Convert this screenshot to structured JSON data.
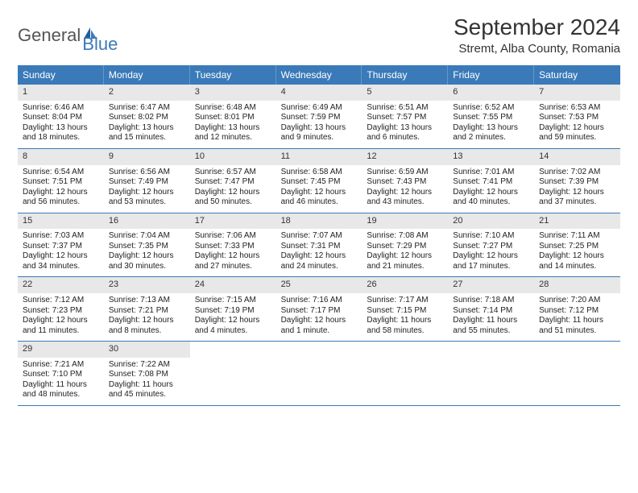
{
  "logo": {
    "text1": "General",
    "text2": "Blue"
  },
  "title": "September 2024",
  "location": "Stremt, Alba County, Romania",
  "colors": {
    "header_bg": "#3a7ab8",
    "header_text": "#ffffff",
    "daynum_bg": "#e8e8e8",
    "week_border": "#3a7ab8",
    "body_text": "#222222",
    "logo_gray": "#555555",
    "logo_blue": "#3a7ab8",
    "page_bg": "#ffffff"
  },
  "typography": {
    "title_fontsize": 28,
    "location_fontsize": 15,
    "dayheader_fontsize": 12,
    "daynum_fontsize": 11,
    "cell_fontsize": 10,
    "font_family": "Arial"
  },
  "layout": {
    "columns": 7,
    "rows": 5,
    "first_day_column": 0
  },
  "day_names": [
    "Sunday",
    "Monday",
    "Tuesday",
    "Wednesday",
    "Thursday",
    "Friday",
    "Saturday"
  ],
  "days": [
    {
      "n": 1,
      "sunrise": "6:46 AM",
      "sunset": "8:04 PM",
      "daylight": "13 hours and 18 minutes."
    },
    {
      "n": 2,
      "sunrise": "6:47 AM",
      "sunset": "8:02 PM",
      "daylight": "13 hours and 15 minutes."
    },
    {
      "n": 3,
      "sunrise": "6:48 AM",
      "sunset": "8:01 PM",
      "daylight": "13 hours and 12 minutes."
    },
    {
      "n": 4,
      "sunrise": "6:49 AM",
      "sunset": "7:59 PM",
      "daylight": "13 hours and 9 minutes."
    },
    {
      "n": 5,
      "sunrise": "6:51 AM",
      "sunset": "7:57 PM",
      "daylight": "13 hours and 6 minutes."
    },
    {
      "n": 6,
      "sunrise": "6:52 AM",
      "sunset": "7:55 PM",
      "daylight": "13 hours and 2 minutes."
    },
    {
      "n": 7,
      "sunrise": "6:53 AM",
      "sunset": "7:53 PM",
      "daylight": "12 hours and 59 minutes."
    },
    {
      "n": 8,
      "sunrise": "6:54 AM",
      "sunset": "7:51 PM",
      "daylight": "12 hours and 56 minutes."
    },
    {
      "n": 9,
      "sunrise": "6:56 AM",
      "sunset": "7:49 PM",
      "daylight": "12 hours and 53 minutes."
    },
    {
      "n": 10,
      "sunrise": "6:57 AM",
      "sunset": "7:47 PM",
      "daylight": "12 hours and 50 minutes."
    },
    {
      "n": 11,
      "sunrise": "6:58 AM",
      "sunset": "7:45 PM",
      "daylight": "12 hours and 46 minutes."
    },
    {
      "n": 12,
      "sunrise": "6:59 AM",
      "sunset": "7:43 PM",
      "daylight": "12 hours and 43 minutes."
    },
    {
      "n": 13,
      "sunrise": "7:01 AM",
      "sunset": "7:41 PM",
      "daylight": "12 hours and 40 minutes."
    },
    {
      "n": 14,
      "sunrise": "7:02 AM",
      "sunset": "7:39 PM",
      "daylight": "12 hours and 37 minutes."
    },
    {
      "n": 15,
      "sunrise": "7:03 AM",
      "sunset": "7:37 PM",
      "daylight": "12 hours and 34 minutes."
    },
    {
      "n": 16,
      "sunrise": "7:04 AM",
      "sunset": "7:35 PM",
      "daylight": "12 hours and 30 minutes."
    },
    {
      "n": 17,
      "sunrise": "7:06 AM",
      "sunset": "7:33 PM",
      "daylight": "12 hours and 27 minutes."
    },
    {
      "n": 18,
      "sunrise": "7:07 AM",
      "sunset": "7:31 PM",
      "daylight": "12 hours and 24 minutes."
    },
    {
      "n": 19,
      "sunrise": "7:08 AM",
      "sunset": "7:29 PM",
      "daylight": "12 hours and 21 minutes."
    },
    {
      "n": 20,
      "sunrise": "7:10 AM",
      "sunset": "7:27 PM",
      "daylight": "12 hours and 17 minutes."
    },
    {
      "n": 21,
      "sunrise": "7:11 AM",
      "sunset": "7:25 PM",
      "daylight": "12 hours and 14 minutes."
    },
    {
      "n": 22,
      "sunrise": "7:12 AM",
      "sunset": "7:23 PM",
      "daylight": "12 hours and 11 minutes."
    },
    {
      "n": 23,
      "sunrise": "7:13 AM",
      "sunset": "7:21 PM",
      "daylight": "12 hours and 8 minutes."
    },
    {
      "n": 24,
      "sunrise": "7:15 AM",
      "sunset": "7:19 PM",
      "daylight": "12 hours and 4 minutes."
    },
    {
      "n": 25,
      "sunrise": "7:16 AM",
      "sunset": "7:17 PM",
      "daylight": "12 hours and 1 minute."
    },
    {
      "n": 26,
      "sunrise": "7:17 AM",
      "sunset": "7:15 PM",
      "daylight": "11 hours and 58 minutes."
    },
    {
      "n": 27,
      "sunrise": "7:18 AM",
      "sunset": "7:14 PM",
      "daylight": "11 hours and 55 minutes."
    },
    {
      "n": 28,
      "sunrise": "7:20 AM",
      "sunset": "7:12 PM",
      "daylight": "11 hours and 51 minutes."
    },
    {
      "n": 29,
      "sunrise": "7:21 AM",
      "sunset": "7:10 PM",
      "daylight": "11 hours and 48 minutes."
    },
    {
      "n": 30,
      "sunrise": "7:22 AM",
      "sunset": "7:08 PM",
      "daylight": "11 hours and 45 minutes."
    }
  ],
  "labels": {
    "sunrise_prefix": "Sunrise: ",
    "sunset_prefix": "Sunset: ",
    "daylight_prefix": "Daylight: "
  }
}
